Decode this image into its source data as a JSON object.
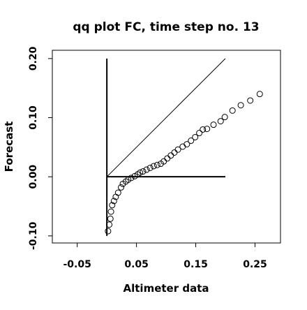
{
  "chart_data": {
    "type": "scatter",
    "title": "qq plot FC, time step no. 13",
    "xlabel": "Altimeter data",
    "ylabel": "Forecast",
    "xlim": [
      -0.092,
      0.293
    ],
    "ylim": [
      -0.112,
      0.214
    ],
    "xticks": [
      -0.05,
      0.05,
      0.15,
      0.25
    ],
    "yticks": [
      {
        "value": -0.1,
        "label": "-0.10"
      },
      {
        "value": 0,
        "label": "0.00"
      },
      {
        "value": 0.1,
        "label": "0.10"
      },
      {
        "value": 0.2,
        "label": "0.20"
      }
    ],
    "color": "#000000",
    "reference_lines": [
      {
        "x": [
          0,
          0
        ],
        "y": [
          -0.1,
          0.2
        ]
      },
      {
        "x": [
          0,
          0.2
        ],
        "y": [
          0,
          0
        ]
      },
      {
        "x": [
          0,
          0.2
        ],
        "y": [
          0,
          0.2
        ]
      }
    ],
    "x": [
      0.002,
      0.004,
      0.006,
      0.007,
      0.009,
      0.012,
      0.015,
      0.019,
      0.024,
      0.027,
      0.032,
      0.036,
      0.041,
      0.047,
      0.052,
      0.056,
      0.061,
      0.067,
      0.073,
      0.079,
      0.085,
      0.091,
      0.096,
      0.102,
      0.108,
      0.114,
      0.12,
      0.128,
      0.135,
      0.142,
      0.149,
      0.156,
      0.162,
      0.169,
      0.18,
      0.192,
      0.199,
      0.212,
      0.226,
      0.242,
      0.258
    ],
    "y": [
      -0.092,
      -0.081,
      -0.071,
      -0.059,
      -0.048,
      -0.041,
      -0.034,
      -0.027,
      -0.018,
      -0.012,
      -0.008,
      -0.005,
      -0.002,
      0.001,
      0.004,
      0.007,
      0.009,
      0.012,
      0.015,
      0.018,
      0.02,
      0.022,
      0.026,
      0.031,
      0.036,
      0.041,
      0.046,
      0.051,
      0.055,
      0.061,
      0.067,
      0.074,
      0.08,
      0.081,
      0.088,
      0.094,
      0.101,
      0.112,
      0.121,
      0.129,
      0.14
    ]
  }
}
